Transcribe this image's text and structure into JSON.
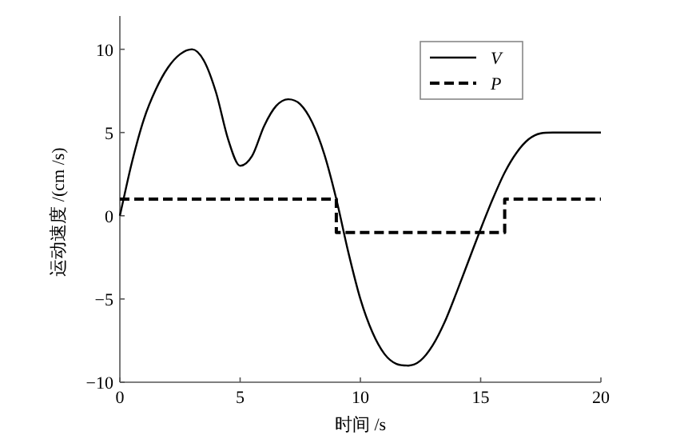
{
  "chart_data": {
    "type": "line",
    "xlabel": "时间 /s",
    "ylabel": "运动速度 /(cm /s)",
    "xlim": [
      0,
      20
    ],
    "xticks": [
      0,
      5,
      10,
      15,
      20
    ],
    "ylim": [
      -10,
      12
    ],
    "yticks": [
      -10,
      -5,
      0,
      5,
      10
    ],
    "grid": false,
    "legend": "top right",
    "series": [
      {
        "name": "V",
        "color": "#000000",
        "line_style": "solid",
        "x": [
          0,
          0.5,
          1,
          1.5,
          2,
          2.5,
          3,
          3.5,
          4,
          4.5,
          5,
          5.5,
          6,
          6.5,
          7,
          7.5,
          8,
          8.5,
          9,
          9.5,
          10,
          10.5,
          11,
          11.5,
          12,
          12.5,
          13,
          13.5,
          14,
          14.5,
          15,
          15.5,
          16,
          16.5,
          17,
          17.5,
          18,
          19,
          20
        ],
        "values": [
          0,
          3.2,
          5.8,
          7.6,
          8.9,
          9.7,
          10,
          9.3,
          7.4,
          4.6,
          3,
          3.6,
          5.4,
          6.6,
          7,
          6.7,
          5.6,
          3.7,
          1,
          -2.2,
          -5,
          -7,
          -8.3,
          -8.9,
          -9,
          -8.7,
          -7.8,
          -6.4,
          -4.6,
          -2.7,
          -0.8,
          1,
          2.6,
          3.8,
          4.6,
          4.95,
          5,
          5,
          5
        ]
      },
      {
        "name": "P",
        "type": "step",
        "color": "#000000",
        "line_style": "dashed",
        "x": [
          0,
          9,
          16,
          20
        ],
        "values": [
          1,
          -1,
          1,
          1
        ]
      }
    ]
  }
}
